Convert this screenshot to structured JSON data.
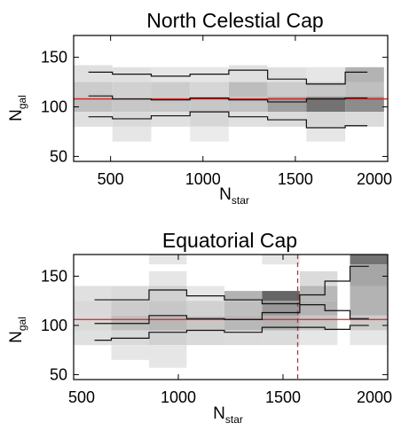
{
  "figure": {
    "background": "#ffffff"
  },
  "chart_data": [
    {
      "type": "heatmap",
      "title": "North Celestial Cap",
      "xlabel_main": "N",
      "xlabel_sub": "star",
      "ylabel_main": "N",
      "ylabel_sub": "gal",
      "xlim": [
        300,
        2000
      ],
      "ylim": [
        45,
        172
      ],
      "xticks": [
        500,
        1000,
        1500,
        2000
      ],
      "yticks": [
        50,
        100,
        150
      ],
      "reference_line": {
        "y": 108,
        "color": "#e02020"
      },
      "vertical_line": null,
      "bin_width": 210,
      "cells": [
        {
          "x0": 300,
          "y0": 125,
          "y1": 142,
          "shade": 0.12
        },
        {
          "x0": 300,
          "y0": 110,
          "y1": 125,
          "shade": 0.2
        },
        {
          "x0": 300,
          "y0": 95,
          "y1": 110,
          "shade": 0.25
        },
        {
          "x0": 300,
          "y0": 80,
          "y1": 95,
          "shade": 0.12
        },
        {
          "x0": 510,
          "y0": 125,
          "y1": 140,
          "shade": 0.12
        },
        {
          "x0": 510,
          "y0": 110,
          "y1": 125,
          "shade": 0.18
        },
        {
          "x0": 510,
          "y0": 95,
          "y1": 110,
          "shade": 0.22
        },
        {
          "x0": 510,
          "y0": 80,
          "y1": 95,
          "shade": 0.15
        },
        {
          "x0": 510,
          "y0": 65,
          "y1": 80,
          "shade": 0.1
        },
        {
          "x0": 720,
          "y0": 125,
          "y1": 140,
          "shade": 0.1
        },
        {
          "x0": 720,
          "y0": 110,
          "y1": 125,
          "shade": 0.2
        },
        {
          "x0": 720,
          "y0": 95,
          "y1": 110,
          "shade": 0.22
        },
        {
          "x0": 720,
          "y0": 80,
          "y1": 95,
          "shade": 0.12
        },
        {
          "x0": 930,
          "y0": 125,
          "y1": 140,
          "shade": 0.1
        },
        {
          "x0": 930,
          "y0": 110,
          "y1": 125,
          "shade": 0.16
        },
        {
          "x0": 930,
          "y0": 95,
          "y1": 110,
          "shade": 0.22
        },
        {
          "x0": 930,
          "y0": 80,
          "y1": 95,
          "shade": 0.16
        },
        {
          "x0": 930,
          "y0": 65,
          "y1": 80,
          "shade": 0.08
        },
        {
          "x0": 1140,
          "y0": 125,
          "y1": 142,
          "shade": 0.12
        },
        {
          "x0": 1140,
          "y0": 110,
          "y1": 125,
          "shade": 0.26
        },
        {
          "x0": 1140,
          "y0": 95,
          "y1": 110,
          "shade": 0.24
        },
        {
          "x0": 1140,
          "y0": 80,
          "y1": 95,
          "shade": 0.12
        },
        {
          "x0": 1350,
          "y0": 125,
          "y1": 140,
          "shade": 0.12
        },
        {
          "x0": 1350,
          "y0": 110,
          "y1": 125,
          "shade": 0.2
        },
        {
          "x0": 1350,
          "y0": 95,
          "y1": 110,
          "shade": 0.38
        },
        {
          "x0": 1350,
          "y0": 80,
          "y1": 95,
          "shade": 0.14
        },
        {
          "x0": 1560,
          "y0": 125,
          "y1": 140,
          "shade": 0.1
        },
        {
          "x0": 1560,
          "y0": 110,
          "y1": 125,
          "shade": 0.22
        },
        {
          "x0": 1560,
          "y0": 95,
          "y1": 110,
          "shade": 0.55
        },
        {
          "x0": 1560,
          "y0": 80,
          "y1": 95,
          "shade": 0.16
        },
        {
          "x0": 1560,
          "y0": 65,
          "y1": 80,
          "shade": 0.1
        },
        {
          "x0": 1770,
          "y0": 125,
          "y1": 140,
          "shade": 0.3
        },
        {
          "x0": 1770,
          "y0": 110,
          "y1": 125,
          "shade": 0.25
        },
        {
          "x0": 1770,
          "y0": 95,
          "y1": 110,
          "shade": 0.45
        },
        {
          "x0": 1770,
          "y0": 80,
          "y1": 95,
          "shade": 0.14
        }
      ],
      "series": [
        {
          "values": [
            135,
            133,
            131,
            133,
            137,
            128,
            123,
            135
          ]
        },
        {
          "values": [
            111,
            108,
            107,
            109,
            107,
            105,
            108,
            109
          ]
        },
        {
          "values": [
            90,
            88,
            91,
            95,
            90,
            87,
            79,
            81
          ]
        }
      ],
      "series_x_edges": [
        380,
        510,
        720,
        930,
        1140,
        1350,
        1560,
        1770,
        1890
      ]
    },
    {
      "type": "heatmap",
      "title": "Equatorial Cap",
      "xlabel_main": "N",
      "xlabel_sub": "star",
      "ylabel_main": "N",
      "ylabel_sub": "gal",
      "xlim": [
        500,
        2000
      ],
      "ylim": [
        45,
        172
      ],
      "xticks": [
        500,
        1000,
        1500,
        2000
      ],
      "yticks": [
        50,
        100,
        150
      ],
      "reference_line": {
        "y": 106,
        "color": "#e02020"
      },
      "vertical_line": {
        "x": 1570,
        "color": "#e02020"
      },
      "bin_width": 180,
      "cells": [
        {
          "x0": 500,
          "y0": 125,
          "y1": 140,
          "shade": 0.12
        },
        {
          "x0": 500,
          "y0": 110,
          "y1": 125,
          "shade": 0.15
        },
        {
          "x0": 500,
          "y0": 95,
          "y1": 110,
          "shade": 0.15
        },
        {
          "x0": 500,
          "y0": 80,
          "y1": 95,
          "shade": 0.12
        },
        {
          "x0": 680,
          "y0": 125,
          "y1": 140,
          "shade": 0.14
        },
        {
          "x0": 680,
          "y0": 110,
          "y1": 125,
          "shade": 0.2
        },
        {
          "x0": 680,
          "y0": 95,
          "y1": 110,
          "shade": 0.25
        },
        {
          "x0": 680,
          "y0": 80,
          "y1": 95,
          "shade": 0.15
        },
        {
          "x0": 680,
          "y0": 65,
          "y1": 80,
          "shade": 0.1
        },
        {
          "x0": 860,
          "y0": 162,
          "y1": 172,
          "shade": 0.1
        },
        {
          "x0": 860,
          "y0": 140,
          "y1": 155,
          "shade": 0.1
        },
        {
          "x0": 860,
          "y0": 125,
          "y1": 140,
          "shade": 0.18
        },
        {
          "x0": 860,
          "y0": 110,
          "y1": 125,
          "shade": 0.22
        },
        {
          "x0": 860,
          "y0": 95,
          "y1": 110,
          "shade": 0.28
        },
        {
          "x0": 860,
          "y0": 80,
          "y1": 95,
          "shade": 0.18
        },
        {
          "x0": 860,
          "y0": 57,
          "y1": 80,
          "shade": 0.1
        },
        {
          "x0": 1040,
          "y0": 125,
          "y1": 140,
          "shade": 0.1
        },
        {
          "x0": 1040,
          "y0": 110,
          "y1": 125,
          "shade": 0.18
        },
        {
          "x0": 1040,
          "y0": 95,
          "y1": 110,
          "shade": 0.22
        },
        {
          "x0": 1040,
          "y0": 80,
          "y1": 95,
          "shade": 0.15
        },
        {
          "x0": 1220,
          "y0": 125,
          "y1": 135,
          "shade": 0.3
        },
        {
          "x0": 1220,
          "y0": 110,
          "y1": 125,
          "shade": 0.25
        },
        {
          "x0": 1220,
          "y0": 95,
          "y1": 110,
          "shade": 0.28
        },
        {
          "x0": 1220,
          "y0": 80,
          "y1": 95,
          "shade": 0.14
        },
        {
          "x0": 1400,
          "y0": 162,
          "y1": 172,
          "shade": 0.1
        },
        {
          "x0": 1400,
          "y0": 125,
          "y1": 135,
          "shade": 0.6
        },
        {
          "x0": 1400,
          "y0": 110,
          "y1": 125,
          "shade": 0.4
        },
        {
          "x0": 1400,
          "y0": 95,
          "y1": 110,
          "shade": 0.3
        },
        {
          "x0": 1400,
          "y0": 80,
          "y1": 95,
          "shade": 0.14
        },
        {
          "x0": 1580,
          "y0": 140,
          "y1": 155,
          "shade": 0.14
        },
        {
          "x0": 1580,
          "y0": 125,
          "y1": 140,
          "shade": 0.28
        },
        {
          "x0": 1580,
          "y0": 110,
          "y1": 125,
          "shade": 0.3
        },
        {
          "x0": 1580,
          "y0": 95,
          "y1": 110,
          "shade": 0.22
        },
        {
          "x0": 1580,
          "y0": 80,
          "y1": 95,
          "shade": 0.1
        },
        {
          "x0": 1820,
          "y0": 162,
          "y1": 172,
          "shade": 0.55
        },
        {
          "x0": 1820,
          "y0": 140,
          "y1": 162,
          "shade": 0.35
        },
        {
          "x0": 1820,
          "y0": 110,
          "y1": 140,
          "shade": 0.3
        },
        {
          "x0": 1820,
          "y0": 95,
          "y1": 110,
          "shade": 0.2
        },
        {
          "x0": 1820,
          "y0": 80,
          "y1": 95,
          "shade": 0.1
        }
      ],
      "series": [
        {
          "values": [
            126,
            126,
            136,
            130,
            126,
            122,
            131,
            145,
            160
          ]
        },
        {
          "values": [
            102,
            102,
            110,
            107,
            106,
            113,
            121,
            115,
            107
          ]
        },
        {
          "values": [
            85,
            87,
            93,
            95,
            93,
            98,
            98,
            96,
            100
          ]
        }
      ],
      "series_x_edges": [
        600,
        680,
        860,
        1040,
        1220,
        1400,
        1580,
        1700,
        1820,
        1910
      ]
    }
  ]
}
